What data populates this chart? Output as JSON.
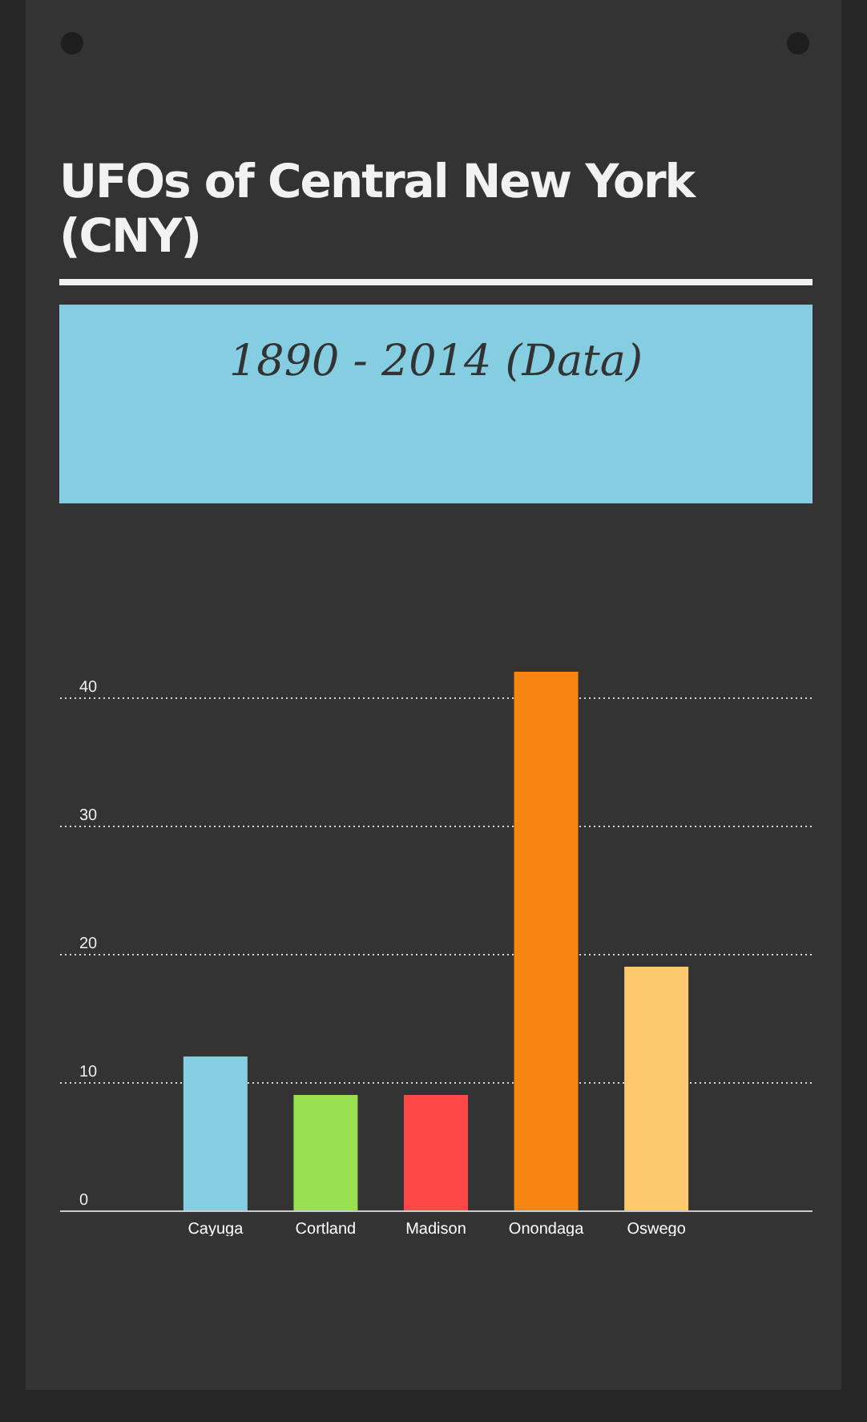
{
  "chart_data": {
    "type": "bar",
    "title": "UFOs of Central New York (CNY)",
    "subtitle": "1890 - 2014 (Data)",
    "categories": [
      "Cayuga",
      "Cortland",
      "Madison",
      "Onondaga",
      "Oswego"
    ],
    "values": [
      12,
      9,
      9,
      42,
      19
    ],
    "colors": [
      "#85cde0",
      "#98e04f",
      "#ff4848",
      "#f7850f",
      "#fdc86e"
    ],
    "ylim": [
      0,
      42
    ],
    "yticks": [
      0,
      10,
      20,
      30,
      40
    ],
    "grid": "y"
  }
}
